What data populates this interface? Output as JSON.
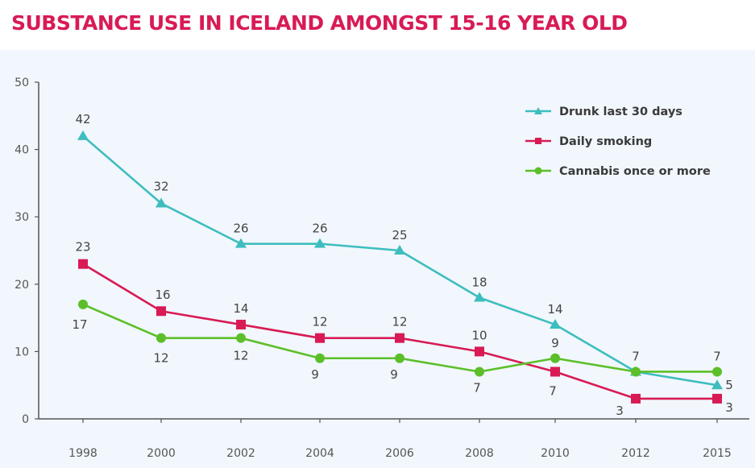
{
  "title": "SUBSTANCE USE IN ICELAND AMONGST 15-16 YEAR OLD",
  "chart_data": {
    "type": "line",
    "categories": [
      "1998",
      "2000",
      "2002",
      "2004",
      "2006",
      "2008",
      "2010",
      "2012",
      "2015"
    ],
    "ylim": [
      0,
      50
    ],
    "yticks": [
      0,
      10,
      20,
      30,
      40,
      50
    ],
    "grid": false,
    "legend": "top-right",
    "series": [
      {
        "name": "Drunk last 30 days",
        "color": "#3dbdbf",
        "marker": "triangle",
        "values": [
          42,
          32,
          26,
          26,
          25,
          18,
          14,
          7,
          5
        ],
        "labels": [
          "42",
          "32",
          "26",
          "26",
          "25",
          "18",
          "14",
          "7",
          "5"
        ]
      },
      {
        "name": "Daily smoking",
        "color": "#d81b55",
        "marker": "square",
        "values": [
          23,
          16,
          14,
          12,
          12,
          10,
          7,
          3,
          3
        ],
        "labels": [
          "23",
          "16",
          "14",
          "12",
          "12",
          "10",
          "7",
          "3",
          "3"
        ]
      },
      {
        "name": "Cannabis once or more",
        "color": "#5cbf2a",
        "marker": "circle",
        "values": [
          17,
          12,
          12,
          9,
          9,
          7,
          9,
          7,
          7
        ],
        "labels": [
          "17",
          "12",
          "12",
          "9",
          "9",
          "7",
          "9",
          "",
          "7"
        ]
      }
    ]
  }
}
